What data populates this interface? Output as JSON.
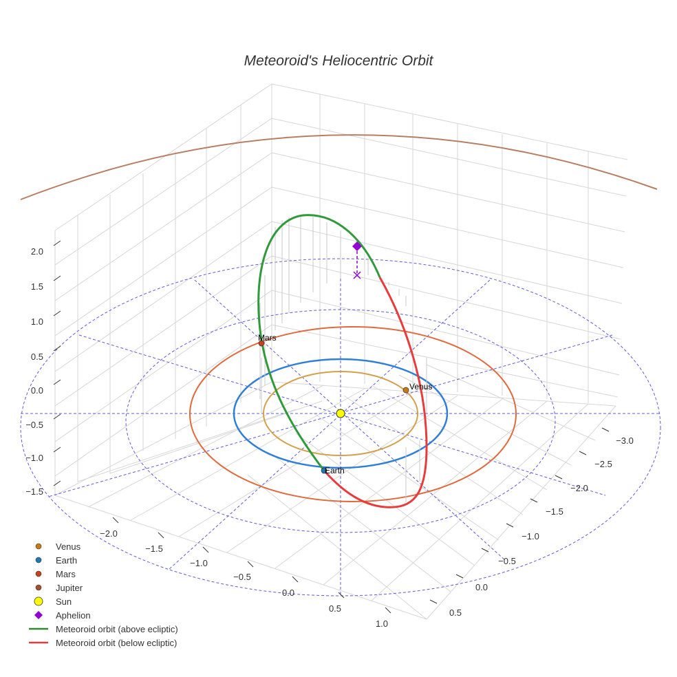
{
  "chart_data": {
    "type": "scatter3d",
    "title": "Meteoroid's Heliocentric Orbit",
    "axes": {
      "x": {
        "ticks": [
          "−2.0",
          "−1.5",
          "−1.0",
          "−0.5",
          "0.0",
          "0.5",
          "1.0"
        ]
      },
      "y": {
        "ticks": [
          "−3.0",
          "−2.5",
          "−2.0",
          "−1.5",
          "−1.0",
          "−0.5",
          "0.0",
          "0.5"
        ]
      },
      "z": {
        "ticks": [
          "2.0",
          "1.5",
          "1.0",
          "0.5",
          "0.0",
          "−0.5",
          "−1.0",
          "−1.5"
        ]
      }
    },
    "planets": [
      {
        "name": "Venus",
        "orbit_radius_au": 0.72,
        "color": "#d4a04a",
        "marker_color": "#c8790f"
      },
      {
        "name": "Earth",
        "orbit_radius_au": 1.0,
        "color": "#2f7fd8",
        "marker_color": "#1f77b4"
      },
      {
        "name": "Mars",
        "orbit_radius_au": 1.52,
        "color": "#e06a3c",
        "marker_color": "#c8411a"
      },
      {
        "name": "Jupiter",
        "orbit_radius_au": 5.2,
        "color": "#b87e62",
        "marker_color": "#a0522d"
      }
    ],
    "sun": {
      "name": "Sun",
      "color": "#ffff00"
    },
    "aphelion": {
      "name": "Aphelion",
      "color": "#9400d3"
    },
    "meteoroid": {
      "above_color": "#2e9a3a",
      "below_color": "#e83c3c"
    },
    "legend": {
      "placement": "bottom-left",
      "entries": [
        "Venus",
        "Earth",
        "Mars",
        "Jupiter",
        "Sun",
        "Aphelion",
        "Meteoroid orbit (above ecliptic)",
        "Meteoroid orbit (below ecliptic)"
      ]
    }
  }
}
